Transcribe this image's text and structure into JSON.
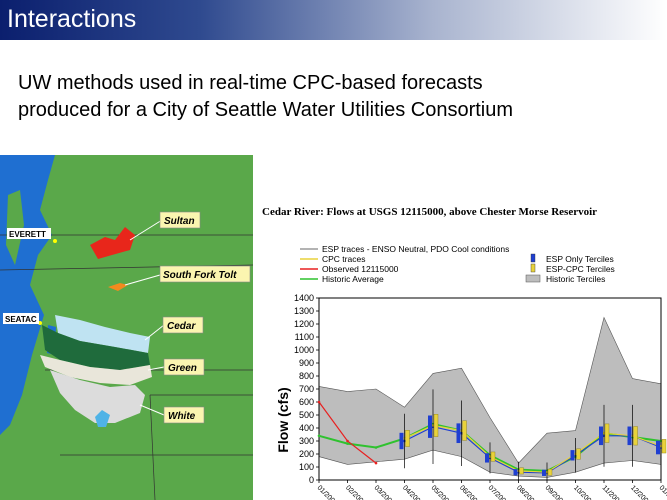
{
  "slide": {
    "title": "Interactions",
    "subtitle_line1": "UW methods used in real-time CPC-based forecasts",
    "subtitle_line2": "produced for a City of Seattle Water Utilities Consortium"
  },
  "map": {
    "cities": [
      "EVERETT",
      "SEATAC"
    ],
    "watersheds": [
      "Sultan",
      "South Fork Tolt",
      "Cedar",
      "Green",
      "White"
    ],
    "colors": {
      "water": "#1f6fd1",
      "land": "#5aa84a",
      "sultan": "#e8261b",
      "tolt": "#f28a1e",
      "cedar_upper": "#bfe3f2",
      "cedar_lower": "#1f6b3c",
      "green": "#e9e6da",
      "white": "#dcdcdc",
      "label_bg": "#fbf5b0"
    }
  },
  "chart_data": {
    "type": "line",
    "title": "Cedar River: Flows at USGS 12115000, above Chester Morse Reservoir",
    "ylabel": "Flow (cfs)",
    "xlabel": "",
    "ylim": [
      0,
      1400
    ],
    "yticks": [
      0,
      100,
      200,
      300,
      400,
      500,
      600,
      700,
      800,
      900,
      1000,
      1100,
      1200,
      1300,
      1400
    ],
    "categories": [
      "01/2006",
      "02/2006",
      "03/2006",
      "04/2006",
      "05/2006",
      "06/2006",
      "07/2006",
      "08/2006",
      "09/2006",
      "10/2006",
      "11/2006",
      "12/2006",
      "01/2007"
    ],
    "legend": [
      {
        "label": "ESP traces - ENSO Neutral, PDO Cool conditions",
        "color": "#9a9a9a",
        "kind": "line"
      },
      {
        "label": "CPC traces",
        "color": "#e8d23c",
        "kind": "line"
      },
      {
        "label": "Observed 12115000",
        "color": "#e82020",
        "kind": "line"
      },
      {
        "label": "Historic Average",
        "color": "#2fc22f",
        "kind": "line"
      },
      {
        "label": "ESP Only Terciles",
        "color": "#1f3fd1",
        "kind": "box"
      },
      {
        "label": "ESP-CPC Terciles",
        "color": "#e8d23c",
        "kind": "box"
      },
      {
        "label": "Historic Terciles",
        "color": "#bdbdbd",
        "kind": "area"
      }
    ],
    "series": [
      {
        "name": "Historic Average",
        "values": [
          340,
          280,
          250,
          320,
          430,
          380,
          190,
          80,
          70,
          180,
          360,
          330,
          300
        ]
      },
      {
        "name": "Observed 12115000",
        "values": [
          600,
          300,
          130,
          null,
          null,
          null,
          null,
          null,
          null,
          null,
          null,
          null,
          null
        ]
      },
      {
        "name": "ESP Only Terciles median",
        "values": [
          null,
          null,
          null,
          300,
          410,
          360,
          170,
          60,
          55,
          190,
          340,
          340,
          250
        ]
      },
      {
        "name": "ESP-CPC Terciles median",
        "values": [
          null,
          null,
          null,
          320,
          420,
          380,
          180,
          70,
          60,
          200,
          360,
          340,
          260
        ]
      }
    ],
    "historic_range": {
      "upper": [
        720,
        680,
        700,
        560,
        820,
        860,
        480,
        130,
        360,
        380,
        1250,
        780,
        740
      ],
      "lower": [
        180,
        120,
        140,
        160,
        230,
        180,
        60,
        30,
        20,
        60,
        130,
        150,
        120
      ]
    },
    "grid": false,
    "legend_placement": "top"
  }
}
